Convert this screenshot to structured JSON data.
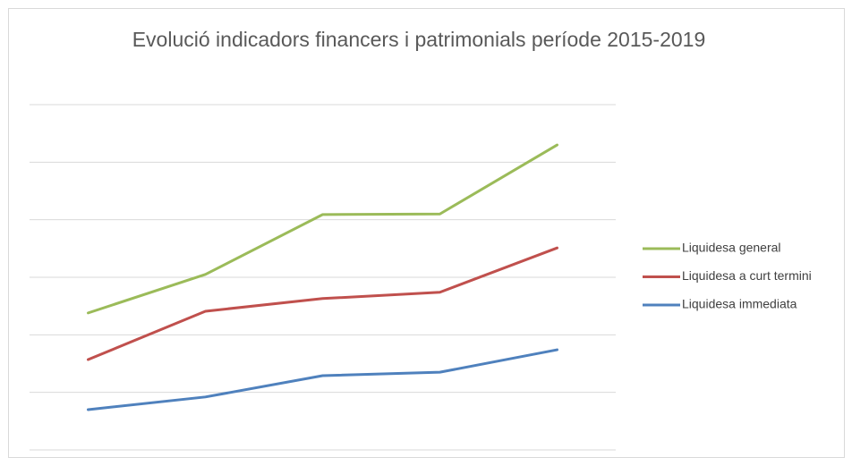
{
  "chart_data": {
    "type": "line",
    "title": "Evolució indicadors financers i patrimonials període 2015-2019",
    "categories": [
      null,
      null,
      null,
      null,
      null
    ],
    "series": [
      {
        "name": "Liquidesa general",
        "color": "#9bbb59",
        "values": [
          2.38,
          3.05,
          4.09,
          4.1,
          5.3
        ]
      },
      {
        "name": "Liquidesa a curt termini",
        "color": "#c0504d",
        "values": [
          1.57,
          2.41,
          2.63,
          2.74,
          3.51
        ]
      },
      {
        "name": "Liquidesa immediata",
        "color": "#4f81bd",
        "values": [
          0.7,
          0.92,
          1.29,
          1.35,
          1.74
        ]
      }
    ],
    "ylim": [
      0,
      6
    ],
    "yticks": [
      0,
      1,
      2,
      3,
      4,
      5,
      6
    ],
    "grid": true,
    "legend": "right"
  }
}
